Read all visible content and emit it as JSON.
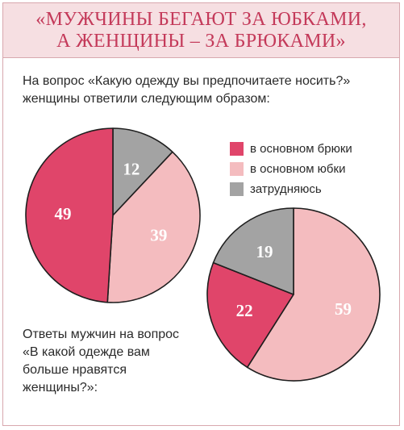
{
  "title": {
    "line1": "«МУЖЧИНЫ БЕГАЮТ ЗА ЮБКАМИ,",
    "line2": "А ЖЕНЩИНЫ – ЗА БРЮКАМИ»"
  },
  "questions": {
    "women": "На вопрос «Какую одежду вы предпочитаете носить?» женщины ответили следующим образом:",
    "men": "Ответы мужчин на вопрос «В какой одежде вам больше нравятся женщины?»:"
  },
  "legend": [
    {
      "label": "в основном брюки",
      "color": "#e0456a"
    },
    {
      "label": "в основном юбки",
      "color": "#f4bcbf"
    },
    {
      "label": "затрудняюсь",
      "color": "#a3a3a3"
    }
  ],
  "chart_data": [
    {
      "type": "pie",
      "categories": [
        "в основном брюки",
        "в основном юбки",
        "затрудняюсь"
      ],
      "values": [
        49,
        39,
        12
      ],
      "data_labels": [
        "49",
        "39",
        "12"
      ],
      "colors": [
        "#e0456a",
        "#f4bcbf",
        "#a3a3a3"
      ]
    },
    {
      "type": "pie",
      "categories": [
        "в основном брюки",
        "в основном юбки",
        "затрудняюсь"
      ],
      "values": [
        22,
        59,
        19
      ],
      "data_labels": [
        "22",
        "59",
        "19"
      ],
      "colors": [
        "#e0456a",
        "#f4bcbf",
        "#a3a3a3"
      ]
    }
  ]
}
